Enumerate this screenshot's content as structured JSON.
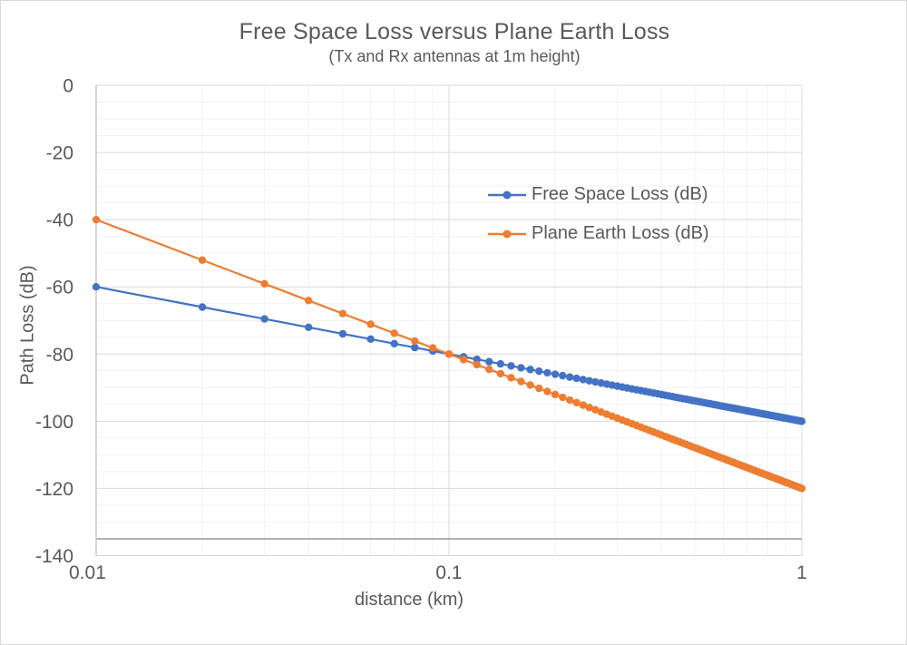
{
  "chart_data": {
    "type": "line",
    "title": "Free Space Loss versus Plane Earth Loss",
    "subtitle": "(Tx and Rx antennas at 1m height)",
    "x_axis": {
      "label": "distance (km)",
      "scale": "log",
      "min": 0.01,
      "max": 1,
      "ticks": [
        0.01,
        0.1,
        1
      ],
      "tick_labels": [
        "0.01",
        "0.1",
        "1"
      ],
      "minor_grid": true
    },
    "y_axis": {
      "label": "Path Loss (dB)",
      "min": -140,
      "max": 0,
      "major_unit": 20,
      "minor_unit": 5,
      "tick_labels": [
        "0",
        "-20",
        "-40",
        "-60",
        "-80",
        "-100",
        "-120",
        "-140"
      ],
      "axis_line_at": -135
    },
    "grid": "on",
    "legend_position": "inside-top-right",
    "colors": {
      "free_space": "#4472C4",
      "plane_earth": "#ED7D31",
      "major_grid": "#D9D9D9",
      "minor_grid": "#F2F2F2",
      "axis_line": "#808080",
      "axis_line_light": "#BFBFBF",
      "text": "#595959"
    },
    "x": [
      0.01,
      0.02,
      0.03,
      0.04,
      0.05,
      0.06,
      0.07,
      0.08,
      0.09,
      0.1,
      0.11,
      0.12,
      0.13,
      0.14,
      0.15,
      0.16,
      0.17,
      0.18,
      0.19,
      0.2,
      0.21,
      0.22,
      0.23,
      0.24,
      0.25,
      0.26,
      0.27,
      0.28,
      0.29,
      0.3,
      0.31,
      0.32,
      0.33,
      0.34,
      0.35,
      0.36,
      0.37,
      0.38,
      0.39,
      0.4,
      0.41,
      0.42,
      0.43,
      0.44,
      0.45,
      0.46,
      0.47,
      0.48,
      0.49,
      0.5,
      0.51,
      0.52,
      0.53,
      0.54,
      0.55,
      0.56,
      0.57,
      0.58,
      0.59,
      0.6,
      0.61,
      0.62,
      0.63,
      0.64,
      0.65,
      0.66,
      0.67,
      0.68,
      0.69,
      0.7,
      0.71,
      0.72,
      0.73,
      0.74,
      0.75,
      0.76,
      0.77,
      0.78,
      0.79,
      0.8,
      0.81,
      0.82,
      0.83,
      0.84,
      0.85,
      0.86,
      0.87,
      0.88,
      0.89,
      0.9,
      0.91,
      0.92,
      0.93,
      0.94,
      0.95,
      0.96,
      0.97,
      0.98,
      0.99,
      1.0
    ],
    "series": [
      {
        "name": "Free Space Loss (dB)",
        "color": "#4472C4",
        "values": [
          -60,
          -66.02,
          -69.54,
          -72.04,
          -73.98,
          -75.56,
          -76.9,
          -78.06,
          -79.08,
          -80,
          -80.83,
          -81.58,
          -82.28,
          -82.92,
          -83.52,
          -84.08,
          -84.61,
          -85.11,
          -85.58,
          -86.02,
          -86.44,
          -86.85,
          -87.23,
          -87.6,
          -87.96,
          -88.3,
          -88.63,
          -88.94,
          -89.25,
          -89.54,
          -89.83,
          -90.1,
          -90.37,
          -90.63,
          -90.88,
          -91.13,
          -91.36,
          -91.6,
          -91.82,
          -92.04,
          -92.26,
          -92.46,
          -92.67,
          -92.87,
          -93.06,
          -93.26,
          -93.44,
          -93.62,
          -93.8,
          -93.98,
          -94.15,
          -94.32,
          -94.49,
          -94.65,
          -94.81,
          -94.96,
          -95.12,
          -95.27,
          -95.42,
          -95.56,
          -95.71,
          -95.85,
          -95.99,
          -96.12,
          -96.26,
          -96.39,
          -96.52,
          -96.65,
          -96.78,
          -96.9,
          -97.03,
          -97.15,
          -97.27,
          -97.38,
          -97.5,
          -97.62,
          -97.73,
          -97.84,
          -97.95,
          -98.06,
          -98.17,
          -98.28,
          -98.38,
          -98.49,
          -98.59,
          -98.69,
          -98.79,
          -98.89,
          -98.99,
          -99.08,
          -99.18,
          -99.28,
          -99.37,
          -99.46,
          -99.55,
          -99.65,
          -99.74,
          -99.82,
          -99.91,
          -100
        ]
      },
      {
        "name": "Plane Earth Loss (dB)",
        "color": "#ED7D31",
        "values": [
          -40,
          -52.04,
          -59.08,
          -64.08,
          -67.96,
          -71.13,
          -73.8,
          -76.12,
          -78.17,
          -80,
          -81.66,
          -83.17,
          -84.56,
          -85.85,
          -87.04,
          -88.16,
          -89.22,
          -90.21,
          -91.15,
          -92.04,
          -92.89,
          -93.7,
          -94.47,
          -95.21,
          -95.92,
          -96.6,
          -97.25,
          -97.89,
          -98.5,
          -99.08,
          -99.65,
          -100.21,
          -100.74,
          -101.26,
          -101.76,
          -102.25,
          -102.73,
          -103.19,
          -103.64,
          -104.08,
          -104.51,
          -104.93,
          -105.34,
          -105.74,
          -106.13,
          -106.51,
          -106.88,
          -107.25,
          -107.61,
          -107.96,
          -108.3,
          -108.64,
          -108.97,
          -109.3,
          -109.61,
          -109.93,
          -110.24,
          -110.54,
          -110.83,
          -111.13,
          -111.41,
          -111.7,
          -111.97,
          -112.25,
          -112.52,
          -112.78,
          -113.04,
          -113.3,
          -113.55,
          -113.8,
          -114.05,
          -114.29,
          -114.53,
          -114.77,
          -115,
          -115.23,
          -115.46,
          -115.68,
          -115.91,
          -116.12,
          -116.34,
          -116.55,
          -116.76,
          -116.97,
          -117.18,
          -117.38,
          -117.58,
          -117.78,
          -117.98,
          -118.17,
          -118.36,
          -118.55,
          -118.74,
          -118.93,
          -119.11,
          -119.29,
          -119.47,
          -119.65,
          -119.83,
          -120
        ]
      }
    ]
  }
}
